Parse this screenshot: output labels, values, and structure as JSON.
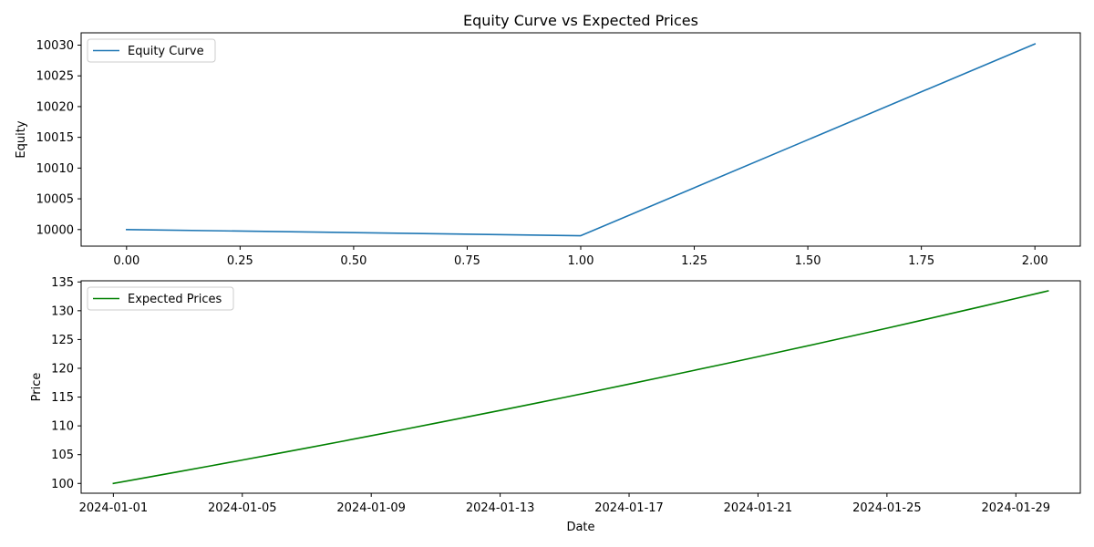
{
  "title": "Equity Curve vs Expected Prices",
  "chart_data": [
    {
      "type": "line",
      "title": "Equity Curve vs Expected Prices",
      "xlabel": "",
      "ylabel": "Equity",
      "xlim": [
        -0.1,
        2.1
      ],
      "ylim": [
        9997.3,
        10032.0
      ],
      "xticks": [
        0.0,
        0.25,
        0.5,
        0.75,
        1.0,
        1.25,
        1.5,
        1.75,
        2.0
      ],
      "xtick_labels": [
        "0.00",
        "0.25",
        "0.50",
        "0.75",
        "1.00",
        "1.25",
        "1.50",
        "1.75",
        "2.00"
      ],
      "yticks": [
        10000,
        10005,
        10010,
        10015,
        10020,
        10025,
        10030
      ],
      "ytick_labels": [
        "10000",
        "10005",
        "10010",
        "10015",
        "10020",
        "10025",
        "10030"
      ],
      "grid": false,
      "legend_position": "top-left",
      "series": [
        {
          "name": "Equity Curve",
          "color": "#1f77b4",
          "x": [
            0,
            1,
            2
          ],
          "y": [
            10000.0,
            9999.0,
            10030.2
          ]
        }
      ]
    },
    {
      "type": "line",
      "title": "",
      "xlabel": "Date",
      "ylabel": "Price",
      "xlim": [
        "2023-12-31",
        "2024-01-31"
      ],
      "ylim": [
        98.3,
        135.2
      ],
      "xticks": [
        "2024-01-01",
        "2024-01-05",
        "2024-01-09",
        "2024-01-13",
        "2024-01-17",
        "2024-01-21",
        "2024-01-25",
        "2024-01-29"
      ],
      "xtick_labels": [
        "2024-01-01",
        "2024-01-05",
        "2024-01-09",
        "2024-01-13",
        "2024-01-17",
        "2024-01-21",
        "2024-01-25",
        "2024-01-29"
      ],
      "yticks": [
        100,
        105,
        110,
        115,
        120,
        125,
        130,
        135
      ],
      "ytick_labels": [
        "100",
        "105",
        "110",
        "115",
        "120",
        "125",
        "130",
        "135"
      ],
      "grid": false,
      "legend_position": "top-left",
      "series": [
        {
          "name": "Expected Prices",
          "color": "#008000",
          "x": [
            "2024-01-01",
            "2024-01-02",
            "2024-01-03",
            "2024-01-04",
            "2024-01-05",
            "2024-01-06",
            "2024-01-07",
            "2024-01-08",
            "2024-01-09",
            "2024-01-10",
            "2024-01-11",
            "2024-01-12",
            "2024-01-13",
            "2024-01-14",
            "2024-01-15",
            "2024-01-16",
            "2024-01-17",
            "2024-01-18",
            "2024-01-19",
            "2024-01-20",
            "2024-01-21",
            "2024-01-22",
            "2024-01-23",
            "2024-01-24",
            "2024-01-25",
            "2024-01-26",
            "2024-01-27",
            "2024-01-28",
            "2024-01-29",
            "2024-01-30"
          ],
          "y": [
            100.0,
            101.0,
            102.01,
            103.03,
            104.06,
            105.1,
            106.15,
            107.21,
            108.29,
            109.37,
            110.46,
            111.57,
            112.68,
            113.81,
            114.95,
            116.1,
            117.26,
            118.43,
            119.62,
            120.81,
            122.02,
            123.24,
            124.47,
            125.72,
            126.97,
            128.24,
            129.53,
            130.82,
            132.13,
            133.45
          ]
        }
      ]
    }
  ]
}
